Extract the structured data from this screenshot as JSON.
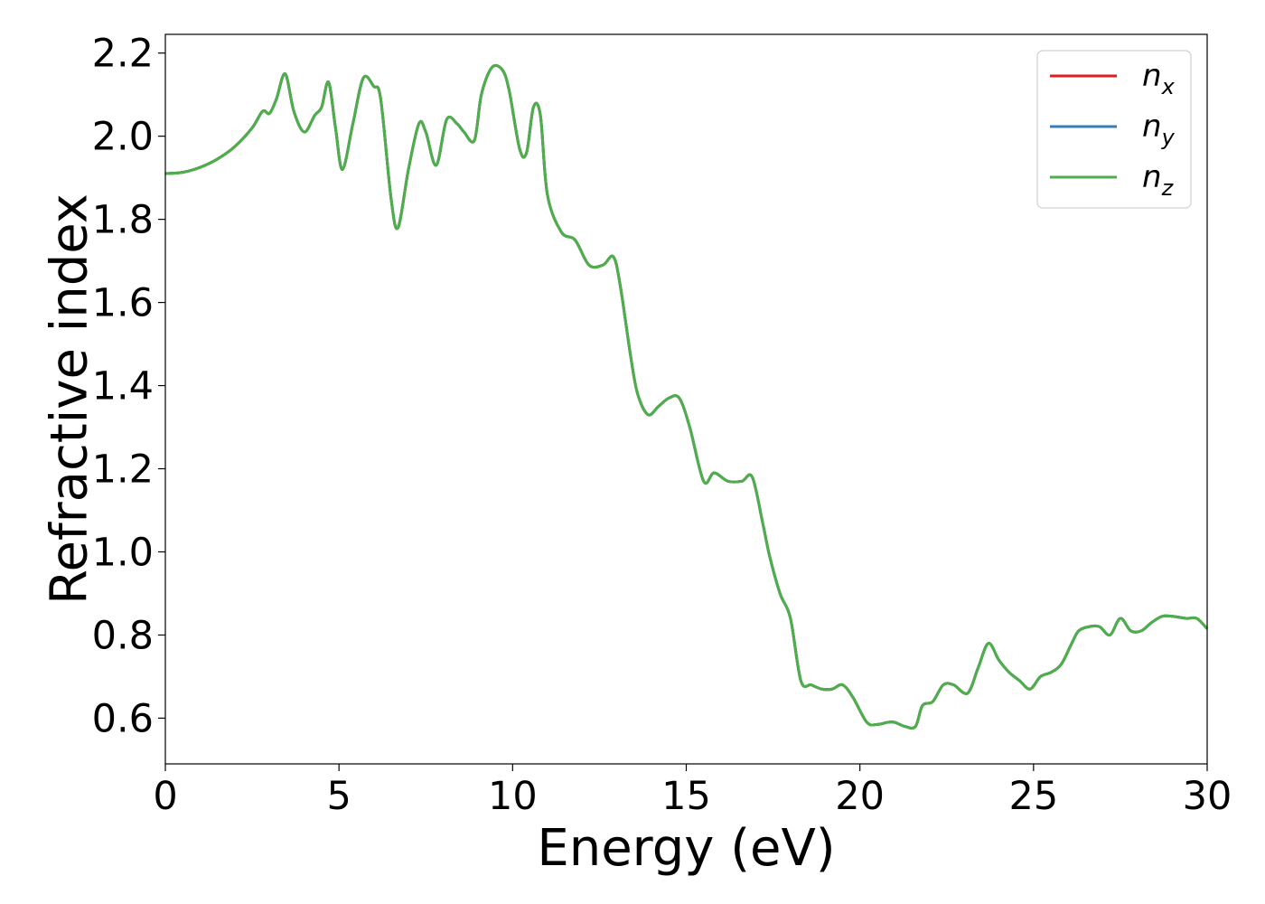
{
  "chart_data": {
    "type": "line",
    "title": "",
    "xlabel": "Energy (eV)",
    "ylabel": "Refractive index",
    "xlim": [
      0,
      30
    ],
    "ylim": [
      0.49,
      2.245
    ],
    "xticks": [
      0,
      5,
      10,
      15,
      20,
      25,
      30
    ],
    "xtick_labels": [
      "0",
      "5",
      "10",
      "15",
      "20",
      "25",
      "30"
    ],
    "yticks": [
      0.6,
      0.8,
      1.0,
      1.2,
      1.4,
      1.6,
      1.8,
      2.0,
      2.2
    ],
    "ytick_labels": [
      "0.6",
      "0.8",
      "1.0",
      "1.2",
      "1.4",
      "1.6",
      "1.8",
      "2.0",
      "2.2"
    ],
    "grid": false,
    "legend_position": "top-right",
    "x": [
      0,
      0.5,
      1.0,
      1.5,
      2.0,
      2.5,
      2.8,
      3.0,
      3.2,
      3.45,
      3.7,
      4.0,
      4.3,
      4.5,
      4.7,
      4.9,
      5.1,
      5.4,
      5.7,
      6.0,
      6.2,
      6.5,
      6.7,
      7.0,
      7.3,
      7.5,
      7.8,
      8.1,
      8.4,
      8.6,
      8.9,
      9.1,
      9.4,
      9.7,
      9.9,
      10.2,
      10.4,
      10.6,
      10.8,
      11.0,
      11.4,
      11.8,
      12.2,
      12.6,
      12.9,
      13.1,
      13.4,
      13.6,
      13.9,
      14.2,
      14.5,
      14.8,
      15.1,
      15.5,
      15.8,
      16.2,
      16.6,
      16.9,
      17.2,
      17.4,
      17.7,
      18.0,
      18.3,
      18.6,
      18.9,
      19.2,
      19.5,
      19.8,
      20.2,
      20.5,
      20.8,
      21.0,
      21.3,
      21.6,
      21.8,
      22.1,
      22.4,
      22.7,
      23.1,
      23.4,
      23.7,
      24.0,
      24.3,
      24.6,
      24.9,
      25.2,
      25.5,
      25.8,
      26.1,
      26.3,
      26.6,
      26.9,
      27.2,
      27.5,
      27.8,
      28.1,
      28.4,
      28.7,
      29.0,
      29.4,
      29.7,
      30.0
    ],
    "series": [
      {
        "name": "n_x",
        "color": "#e41a1c",
        "values": [
          1.91,
          1.913,
          1.925,
          1.945,
          1.975,
          2.02,
          2.06,
          2.055,
          2.09,
          2.15,
          2.06,
          2.01,
          2.05,
          2.07,
          2.13,
          2.02,
          1.92,
          2.03,
          2.14,
          2.12,
          2.09,
          1.85,
          1.78,
          1.92,
          2.03,
          2.01,
          1.93,
          2.04,
          2.03,
          2.01,
          1.99,
          2.1,
          2.165,
          2.16,
          2.11,
          1.97,
          1.96,
          2.07,
          2.05,
          1.86,
          1.77,
          1.75,
          1.69,
          1.69,
          1.71,
          1.64,
          1.47,
          1.38,
          1.33,
          1.35,
          1.37,
          1.37,
          1.3,
          1.17,
          1.19,
          1.17,
          1.17,
          1.18,
          1.07,
          0.99,
          0.9,
          0.84,
          0.69,
          0.68,
          0.67,
          0.67,
          0.68,
          0.65,
          0.59,
          0.585,
          0.59,
          0.59,
          0.58,
          0.58,
          0.63,
          0.64,
          0.68,
          0.68,
          0.66,
          0.72,
          0.78,
          0.74,
          0.71,
          0.69,
          0.67,
          0.7,
          0.71,
          0.73,
          0.78,
          0.81,
          0.82,
          0.82,
          0.8,
          0.84,
          0.81,
          0.81,
          0.83,
          0.845,
          0.845,
          0.84,
          0.84,
          0.815
        ]
      },
      {
        "name": "n_y",
        "color": "#377eb8",
        "values": [
          1.91,
          1.913,
          1.925,
          1.945,
          1.975,
          2.02,
          2.06,
          2.055,
          2.09,
          2.15,
          2.06,
          2.01,
          2.05,
          2.07,
          2.13,
          2.02,
          1.92,
          2.03,
          2.14,
          2.12,
          2.09,
          1.85,
          1.78,
          1.92,
          2.03,
          2.01,
          1.93,
          2.04,
          2.03,
          2.01,
          1.99,
          2.1,
          2.165,
          2.16,
          2.11,
          1.97,
          1.96,
          2.07,
          2.05,
          1.86,
          1.77,
          1.75,
          1.69,
          1.69,
          1.71,
          1.64,
          1.47,
          1.38,
          1.33,
          1.35,
          1.37,
          1.37,
          1.3,
          1.17,
          1.19,
          1.17,
          1.17,
          1.18,
          1.07,
          0.99,
          0.9,
          0.84,
          0.69,
          0.68,
          0.67,
          0.67,
          0.68,
          0.65,
          0.59,
          0.585,
          0.59,
          0.59,
          0.58,
          0.58,
          0.63,
          0.64,
          0.68,
          0.68,
          0.66,
          0.72,
          0.78,
          0.74,
          0.71,
          0.69,
          0.67,
          0.7,
          0.71,
          0.73,
          0.78,
          0.81,
          0.82,
          0.82,
          0.8,
          0.84,
          0.81,
          0.81,
          0.83,
          0.845,
          0.845,
          0.84,
          0.84,
          0.815
        ]
      },
      {
        "name": "n_z",
        "color": "#4daf4a",
        "values": [
          1.91,
          1.913,
          1.925,
          1.945,
          1.975,
          2.02,
          2.06,
          2.055,
          2.09,
          2.15,
          2.06,
          2.01,
          2.05,
          2.07,
          2.13,
          2.02,
          1.92,
          2.03,
          2.14,
          2.12,
          2.09,
          1.85,
          1.78,
          1.92,
          2.03,
          2.01,
          1.93,
          2.04,
          2.03,
          2.01,
          1.99,
          2.1,
          2.165,
          2.16,
          2.11,
          1.97,
          1.96,
          2.07,
          2.05,
          1.86,
          1.77,
          1.75,
          1.69,
          1.69,
          1.71,
          1.64,
          1.47,
          1.38,
          1.33,
          1.35,
          1.37,
          1.37,
          1.3,
          1.17,
          1.19,
          1.17,
          1.17,
          1.18,
          1.07,
          0.99,
          0.9,
          0.84,
          0.69,
          0.68,
          0.67,
          0.67,
          0.68,
          0.65,
          0.59,
          0.585,
          0.59,
          0.59,
          0.58,
          0.58,
          0.63,
          0.64,
          0.68,
          0.68,
          0.66,
          0.72,
          0.78,
          0.74,
          0.71,
          0.69,
          0.67,
          0.7,
          0.71,
          0.73,
          0.78,
          0.81,
          0.82,
          0.82,
          0.8,
          0.84,
          0.81,
          0.81,
          0.83,
          0.845,
          0.845,
          0.84,
          0.84,
          0.815
        ]
      }
    ],
    "legend": [
      {
        "base": "n",
        "sub": "x",
        "color": "#e41a1c"
      },
      {
        "base": "n",
        "sub": "y",
        "color": "#377eb8"
      },
      {
        "base": "n",
        "sub": "z",
        "color": "#4daf4a"
      }
    ]
  }
}
